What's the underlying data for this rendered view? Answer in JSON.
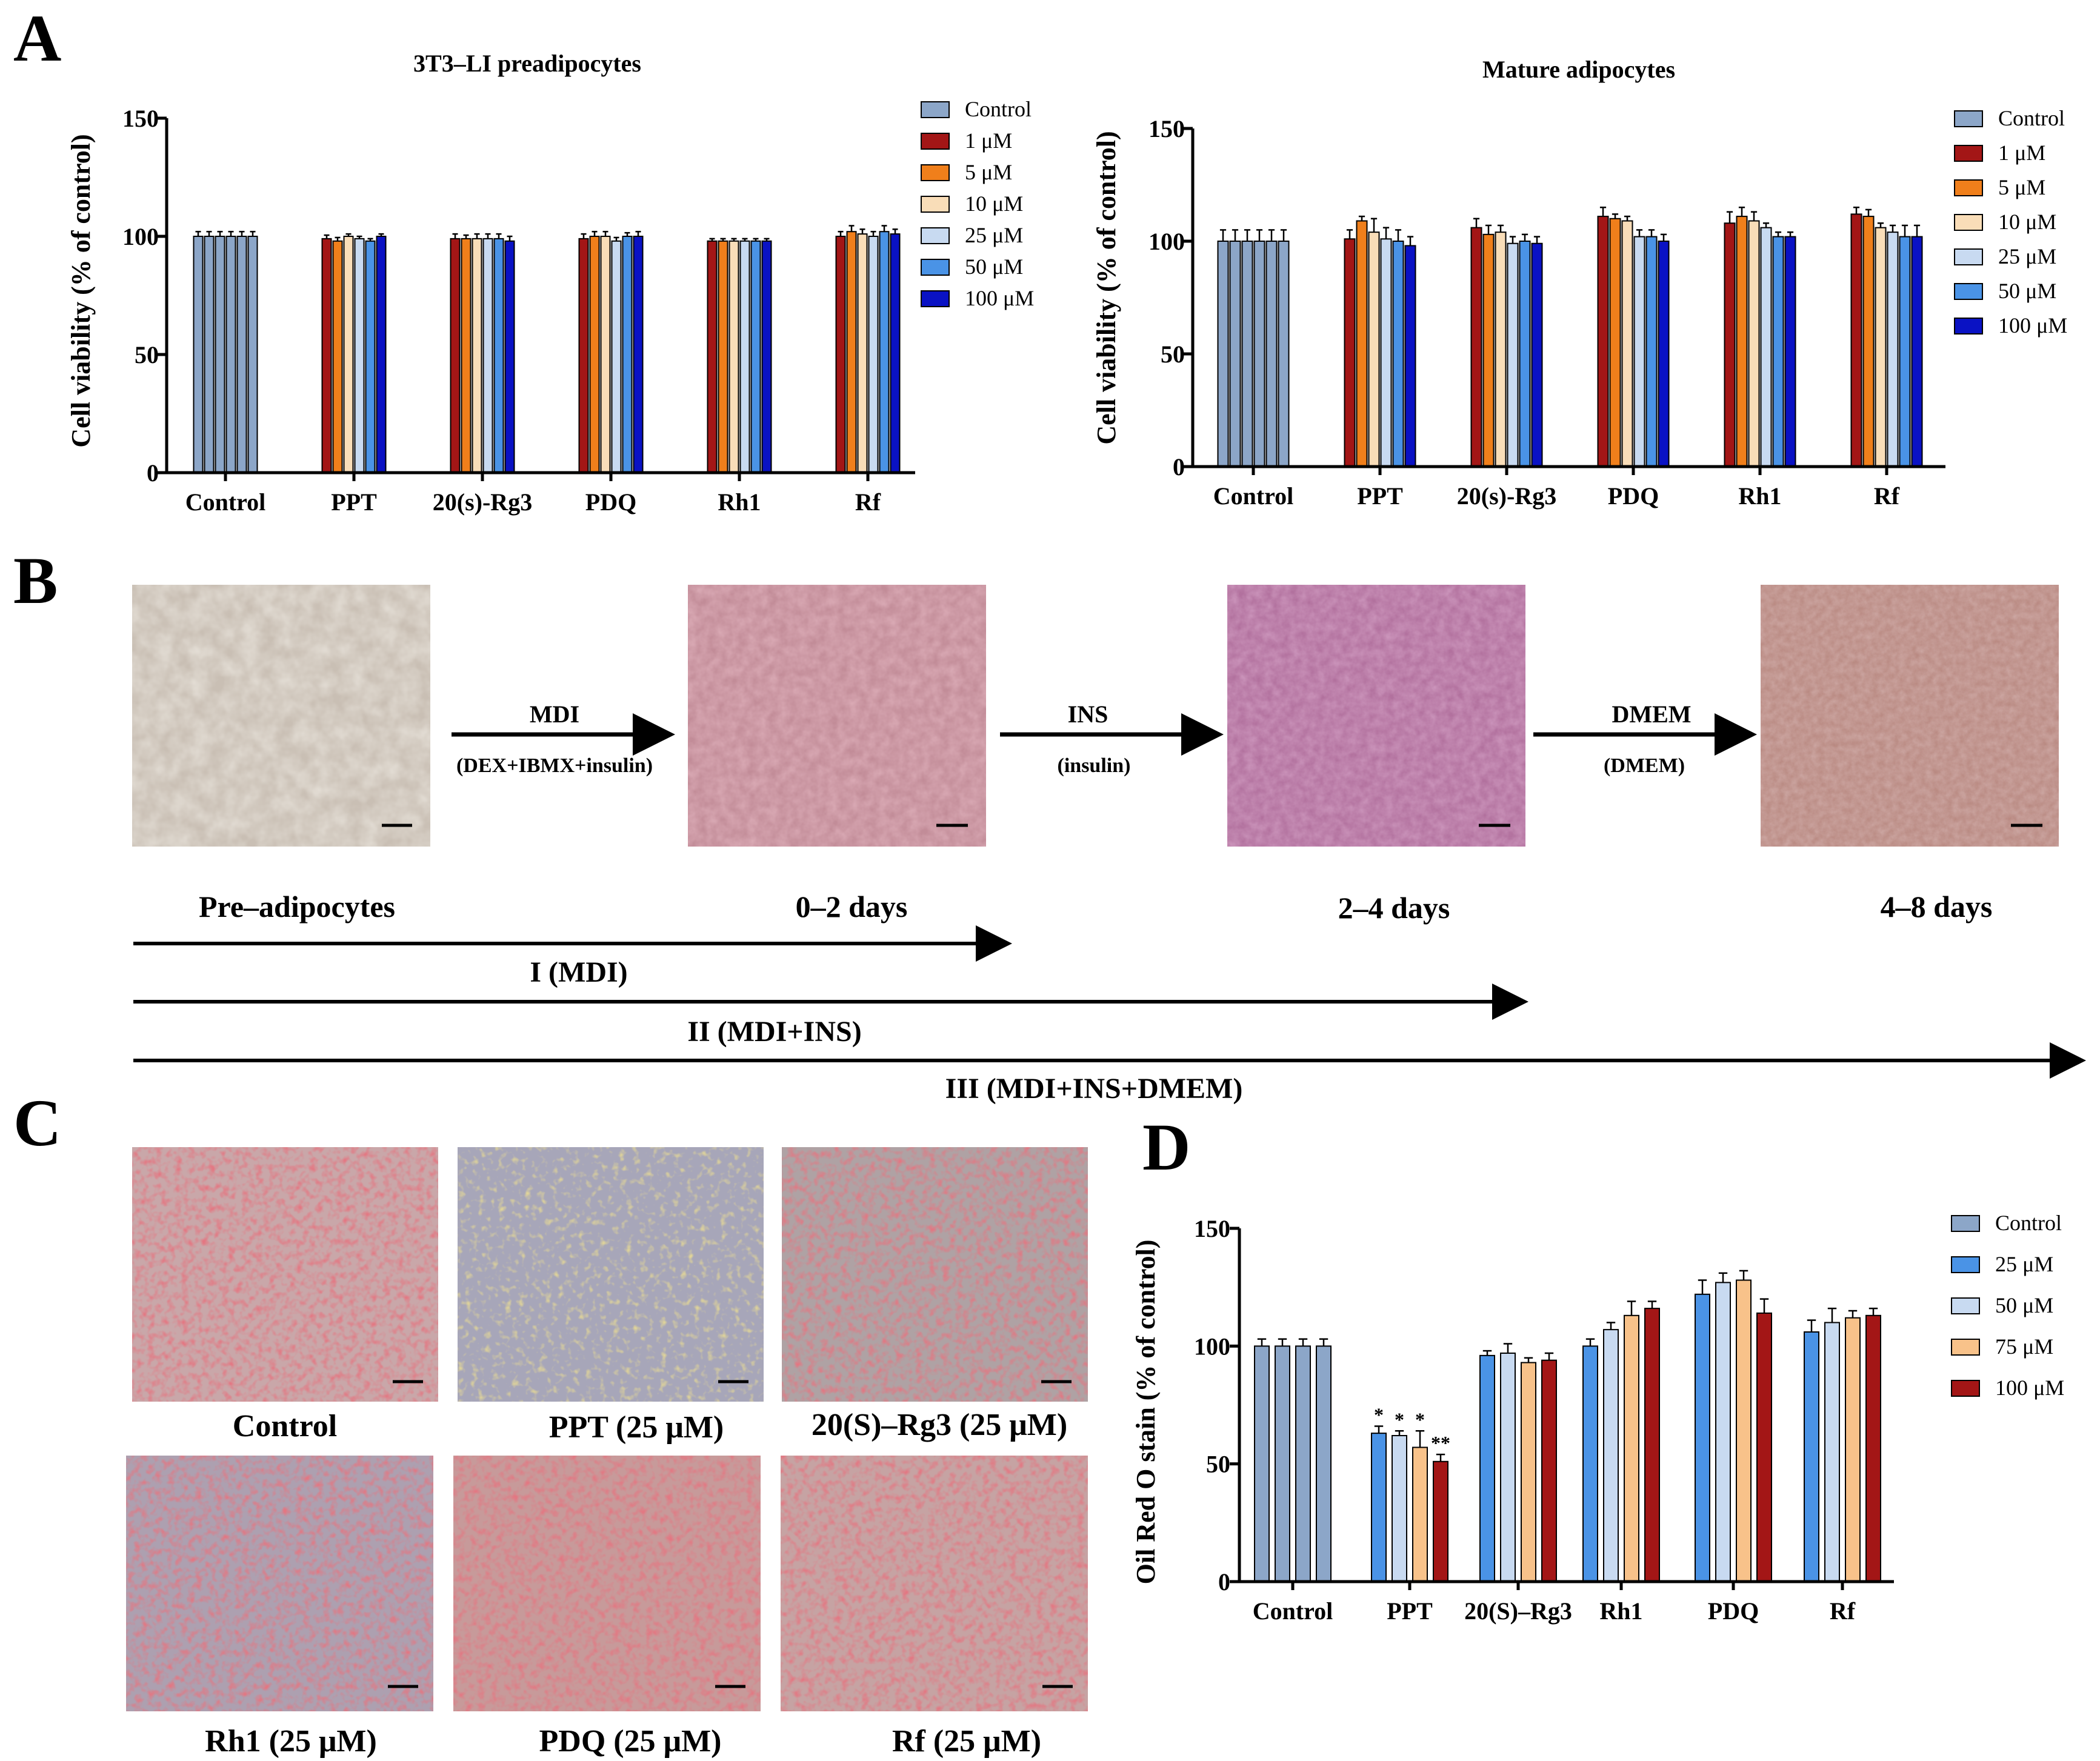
{
  "panels": {
    "a": "A",
    "b": "B",
    "c": "C",
    "d": "D"
  },
  "colors": {
    "Control": "#8CA6C8",
    "1 µM": "#A31616",
    "5 µM": "#F07F1B",
    "10 µM": "#F9DDB8",
    "25 µM": "#C8DAF1",
    "50 µM": "#4A93E6",
    "100 µM": "#0A12C4",
    "D_25 µM": "#4A93E6",
    "D_50 µM": "#C8DAF1",
    "D_75 µM": "#F8C28A",
    "D_100 µM": "#A31616"
  },
  "chart_data": [
    {
      "id": "A1",
      "type": "bar",
      "title": "3T3–LI preadipocytes",
      "xlabel": "",
      "ylabel": "Cell viability  (% of control)",
      "ylim": [
        0,
        150
      ],
      "yticks": [
        0,
        50,
        100,
        150
      ],
      "categories": [
        "Control",
        "PPT",
        "20(s)-Rg3",
        "PDQ",
        "Rh1",
        "Rf"
      ],
      "legend": [
        "Control",
        "1 μM",
        "5 μM",
        "10 μM",
        "25 μM",
        "50 μM",
        "100 μM"
      ],
      "legend_position": "top-right",
      "groups": [
        {
          "values": [
            100,
            100,
            100,
            100,
            100,
            100
          ],
          "errors": [
            2,
            2,
            2,
            2,
            2,
            2
          ]
        },
        {
          "values": [
            99,
            98,
            100,
            99,
            98,
            100
          ],
          "errors": [
            1.5,
            1.5,
            1,
            1,
            1,
            1
          ]
        },
        {
          "values": [
            99,
            99,
            99,
            99,
            99,
            98
          ],
          "errors": [
            2,
            1.5,
            2,
            2,
            2,
            2
          ]
        },
        {
          "values": [
            99,
            100,
            100,
            98,
            100,
            100
          ],
          "errors": [
            2,
            2,
            2,
            1.5,
            1.5,
            2
          ]
        },
        {
          "values": [
            98,
            98,
            98,
            98,
            98,
            98
          ],
          "errors": [
            1,
            1,
            1,
            1,
            1,
            1
          ]
        },
        {
          "values": [
            100,
            102,
            101,
            100,
            102,
            101
          ],
          "errors": [
            2,
            2.5,
            2,
            2,
            2.5,
            2
          ]
        }
      ]
    },
    {
      "id": "A2",
      "type": "bar",
      "title": "Mature adipocytes",
      "xlabel": "",
      "ylabel": "Cell viability  (% of control)",
      "ylim": [
        0,
        150
      ],
      "yticks": [
        0,
        50,
        100,
        150
      ],
      "categories": [
        "Control",
        "PPT",
        "20(s)-Rg3",
        "PDQ",
        "Rh1",
        "Rf"
      ],
      "legend": [
        "Control",
        "1 μM",
        "5 μM",
        "10 μM",
        "25 μM",
        "50 μM",
        "100 μM"
      ],
      "legend_position": "top-right",
      "groups": [
        {
          "values": [
            100,
            100,
            100,
            100,
            100,
            100
          ],
          "errors": [
            5,
            5,
            5,
            5,
            5,
            5
          ]
        },
        {
          "values": [
            101,
            109,
            104,
            101,
            100,
            98
          ],
          "errors": [
            4,
            2,
            6,
            5,
            5,
            4
          ]
        },
        {
          "values": [
            106,
            103,
            104,
            99,
            100,
            99
          ],
          "errors": [
            4,
            4,
            3,
            3,
            3,
            3
          ]
        },
        {
          "values": [
            111,
            110,
            109,
            102,
            102,
            100
          ],
          "errors": [
            4,
            2,
            2,
            3,
            3,
            3
          ]
        },
        {
          "values": [
            108,
            111,
            109,
            106,
            102,
            102
          ],
          "errors": [
            5,
            4,
            4,
            2,
            2,
            2
          ]
        },
        {
          "values": [
            112,
            111,
            106,
            104,
            102,
            102
          ],
          "errors": [
            3,
            3,
            2,
            3,
            5,
            5
          ]
        }
      ]
    },
    {
      "id": "D",
      "type": "bar",
      "title": "",
      "xlabel": "",
      "ylabel": "Oil Red O stain (% of control)",
      "ylim": [
        0,
        150
      ],
      "yticks": [
        0,
        50,
        100,
        150
      ],
      "categories": [
        "Control",
        "PPT",
        "20(S)–Rg3",
        "Rh1",
        "PDQ",
        "Rf"
      ],
      "legend": [
        "Control",
        "25 μM",
        "50 μM",
        "75 μM",
        "100 μM"
      ],
      "legend_position": "top-right",
      "groups": [
        {
          "values": [
            100,
            100,
            100,
            100
          ],
          "errors": [
            3,
            3,
            3,
            3
          ]
        },
        {
          "values": [
            63,
            62,
            57,
            51
          ],
          "errors": [
            3,
            2,
            7,
            3
          ],
          "stars": [
            "*",
            "*",
            "*",
            "**"
          ]
        },
        {
          "values": [
            96,
            97,
            93,
            94
          ],
          "errors": [
            2,
            4,
            2,
            3
          ]
        },
        {
          "values": [
            100,
            107,
            113,
            116
          ],
          "errors": [
            3,
            3,
            6,
            3
          ]
        },
        {
          "values": [
            122,
            127,
            128,
            114
          ],
          "errors": [
            6,
            4,
            4,
            6
          ]
        },
        {
          "values": [
            106,
            110,
            112,
            113
          ],
          "errors": [
            5,
            6,
            3,
            3
          ]
        }
      ]
    }
  ],
  "flow": {
    "arrows": [
      {
        "top": "MDI",
        "bottom": "(DEX+IBMX+insulin)"
      },
      {
        "top": "INS",
        "bottom": "(insulin)"
      },
      {
        "top": "DMEM",
        "bottom": "(DMEM)"
      }
    ],
    "stages": [
      "Pre–adipocytes",
      "0–2 days",
      "2–4 days",
      "4–8 days"
    ],
    "phases": [
      "I  (MDI)",
      "II  (MDI+INS)",
      "III  (MDI+INS+DMEM)"
    ]
  },
  "micrographs": [
    "Control",
    "PPT (25 μM)",
    "20(S)–Rg3 (25 μM)",
    "Rh1 (25 μM)",
    "PDQ (25 μM)",
    "Rf (25 μM)"
  ]
}
